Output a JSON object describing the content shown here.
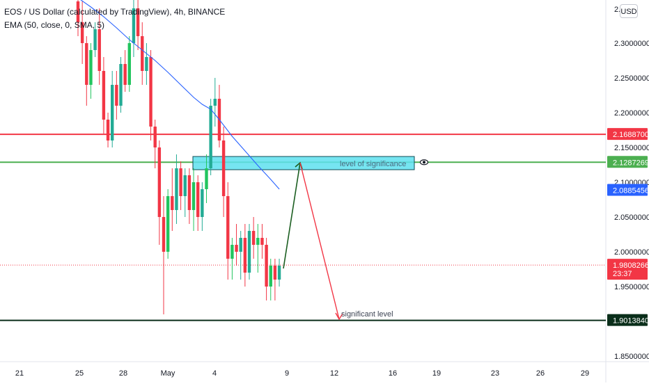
{
  "legend": {
    "symbol_line": "EOS / US Dollar (calculated by TradingView), 4h, BINANCE",
    "indicator_line": "EMA (50, close, 0, SMA, 5)"
  },
  "currency": "USD",
  "colors": {
    "up": "#22ab94",
    "up_bright": "#22c55e",
    "down": "#f23645",
    "ema": "#2962ff",
    "resistance": "#f23645",
    "support_green": "#4caf50",
    "support_dark": "#0a2e1a",
    "zone_fill": "#5ee0ef",
    "arrow_up": "#1b5e20",
    "arrow_down": "#f23645"
  },
  "chart_data": {
    "type": "candlestick",
    "title": "EOS / US Dollar (calculated by TradingView), 4h, BINANCE",
    "y_axis": {
      "ticks": [
        "2.3000000",
        "2.2500000",
        "2.2000000",
        "2.1500000",
        "2.1000000",
        "2.0500000",
        "2.0000000",
        "1.9500000",
        "1.8500000"
      ],
      "range": [
        1.845,
        2.355
      ],
      "partial_top_label": "2.3"
    },
    "x_axis": {
      "ticks": [
        "21",
        "25",
        "28",
        "May",
        "4",
        "9",
        "12",
        "16",
        "19",
        "23",
        "26",
        "29"
      ]
    },
    "price_levels": [
      {
        "value": "2.1688700",
        "color": "#f23645",
        "style": "solid"
      },
      {
        "value": "2.1287269",
        "color": "#4caf50",
        "style": "solid"
      },
      {
        "value": "2.0885456",
        "color": "#2962ff",
        "style": "badge"
      },
      {
        "value": "1.9808266",
        "countdown": "23:37",
        "color": "#f23645",
        "style": "dotted"
      },
      {
        "value": "1.9013840",
        "color": "#0a2e1a",
        "style": "solid"
      }
    ],
    "annotations": [
      {
        "text": "level of significance",
        "type": "zone",
        "price_top": 2.137,
        "price_bottom": 2.118
      },
      {
        "text": "significant level",
        "type": "label",
        "price": 1.905
      }
    ],
    "ema_label": "EMA (50, close, 0, SMA, 5)",
    "ema": [
      [
        0,
        2.365
      ],
      [
        3,
        2.352
      ],
      [
        6,
        2.338
      ],
      [
        9,
        2.322
      ],
      [
        12,
        2.305
      ],
      [
        15,
        2.29
      ],
      [
        18,
        2.275
      ],
      [
        21,
        2.258
      ],
      [
        24,
        2.24
      ],
      [
        27,
        2.222
      ],
      [
        29,
        2.212
      ],
      [
        31,
        2.205
      ],
      [
        33,
        2.19
      ],
      [
        36,
        2.166
      ],
      [
        39,
        2.145
      ],
      [
        42,
        2.124
      ],
      [
        45,
        2.104
      ],
      [
        47,
        2.09
      ]
    ],
    "candles": [
      [
        2.36,
        2.39,
        2.31,
        2.33
      ],
      [
        2.33,
        2.36,
        2.27,
        2.3
      ],
      [
        2.3,
        2.31,
        2.21,
        2.24
      ],
      [
        2.24,
        2.3,
        2.22,
        2.29
      ],
      [
        2.29,
        2.33,
        2.28,
        2.32
      ],
      [
        2.32,
        2.35,
        2.24,
        2.26
      ],
      [
        2.26,
        2.28,
        2.17,
        2.19
      ],
      [
        2.19,
        2.2,
        2.15,
        2.16
      ],
      [
        2.16,
        2.26,
        2.15,
        2.24
      ],
      [
        2.24,
        2.26,
        2.19,
        2.21
      ],
      [
        2.21,
        2.28,
        2.2,
        2.27
      ],
      [
        2.27,
        2.29,
        2.23,
        2.24
      ],
      [
        2.24,
        2.31,
        2.23,
        2.3
      ],
      [
        2.3,
        2.37,
        2.28,
        2.35
      ],
      [
        2.35,
        2.38,
        2.29,
        2.31
      ],
      [
        2.31,
        2.33,
        2.24,
        2.26
      ],
      [
        2.26,
        2.3,
        2.24,
        2.28
      ],
      [
        2.28,
        2.29,
        2.16,
        2.18
      ],
      [
        2.18,
        2.19,
        2.12,
        2.15
      ],
      [
        2.15,
        2.16,
        2.01,
        2.05
      ],
      [
        2.05,
        2.08,
        1.91,
        2.0
      ],
      [
        2.0,
        2.09,
        1.99,
        2.08
      ],
      [
        2.08,
        2.12,
        2.03,
        2.06
      ],
      [
        2.06,
        2.14,
        2.04,
        2.12
      ],
      [
        2.12,
        2.13,
        2.06,
        2.08
      ],
      [
        2.08,
        2.12,
        2.05,
        2.11
      ],
      [
        2.11,
        2.12,
        2.04,
        2.06
      ],
      [
        2.06,
        2.12,
        2.03,
        2.1
      ],
      [
        2.1,
        2.11,
        2.03,
        2.05
      ],
      [
        2.05,
        2.1,
        2.03,
        2.09
      ],
      [
        2.09,
        2.14,
        2.07,
        2.12
      ],
      [
        2.12,
        2.22,
        2.11,
        2.21
      ],
      [
        2.21,
        2.25,
        2.18,
        2.22
      ],
      [
        2.22,
        2.24,
        2.15,
        2.16
      ],
      [
        2.16,
        2.18,
        2.05,
        2.08
      ],
      [
        2.08,
        2.1,
        1.96,
        1.99
      ],
      [
        1.99,
        2.02,
        1.96,
        2.01
      ],
      [
        2.01,
        2.04,
        1.98,
        2.0
      ],
      [
        2.0,
        2.03,
        1.96,
        2.02
      ],
      [
        2.02,
        2.04,
        1.95,
        1.97
      ],
      [
        1.97,
        2.04,
        1.96,
        2.03
      ],
      [
        2.03,
        2.05,
        1.99,
        2.01
      ],
      [
        2.01,
        2.04,
        1.97,
        2.02
      ],
      [
        2.02,
        2.04,
        1.99,
        2.01
      ],
      [
        2.01,
        2.02,
        1.93,
        1.95
      ],
      [
        1.95,
        1.99,
        1.93,
        1.98
      ],
      [
        1.98,
        1.99,
        1.93,
        1.96
      ],
      [
        1.96,
        1.99,
        1.95,
        1.98
      ]
    ]
  }
}
